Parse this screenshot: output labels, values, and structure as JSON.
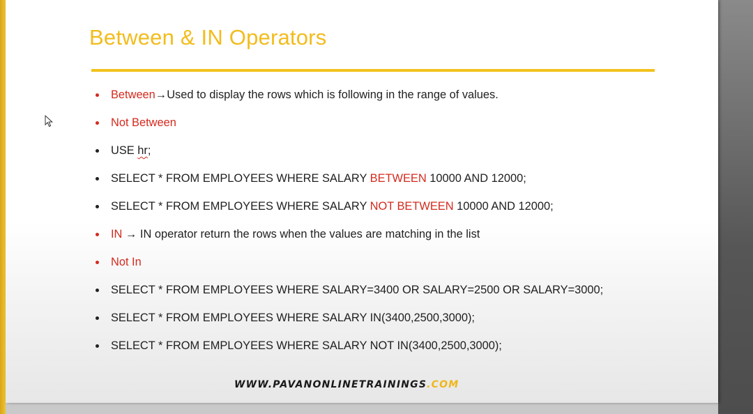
{
  "slide": {
    "title": "Between & IN Operators",
    "bullets": [
      {
        "bullet_color": "#d42a1e",
        "keyword": "Between",
        "arrow": "→",
        "rest": "Used to display the rows which is following in the range of values."
      },
      {
        "bullet_color": "#d42a1e",
        "keyword": "Not Between"
      },
      {
        "bullet_color": "#222222",
        "prefix": "USE ",
        "squiggle": "hr",
        "suffix": ";"
      },
      {
        "bullet_color": "#222222",
        "prefix": "SELECT * FROM EMPLOYEES WHERE SALARY ",
        "keyword": "BETWEEN",
        "suffix": " 10000 AND 12000;"
      },
      {
        "bullet_color": "#222222",
        "prefix": "SELECT * FROM EMPLOYEES WHERE SALARY ",
        "keyword": "NOT BETWEEN",
        "suffix": " 10000 AND 12000;"
      },
      {
        "bullet_color": "#d42a1e",
        "keyword": "IN",
        "arrow": " → ",
        "rest": "IN operator return the rows when the values are matching in the list"
      },
      {
        "bullet_color": "#d42a1e",
        "keyword": "Not In"
      },
      {
        "bullet_color": "#222222",
        "text": "SELECT * FROM EMPLOYEES WHERE SALARY=3400 OR SALARY=2500 OR SALARY=3000;"
      },
      {
        "bullet_color": "#222222",
        "text": "SELECT * FROM EMPLOYEES WHERE SALARY IN(3400,2500,3000);"
      },
      {
        "bullet_color": "#222222",
        "text": "SELECT * FROM EMPLOYEES WHERE SALARY NOT IN(3400,2500,3000);"
      }
    ]
  },
  "footer": {
    "site": "WWW.PAVANONLINETRAININGS",
    "tld": ".COM"
  },
  "colors": {
    "title": "#f2bc1c",
    "rule": "#f2c11d",
    "keyword_red": "#d42a1e",
    "footer_accent": "#f0b616"
  },
  "icons": {
    "cursor": "mouse-pointer-icon"
  }
}
